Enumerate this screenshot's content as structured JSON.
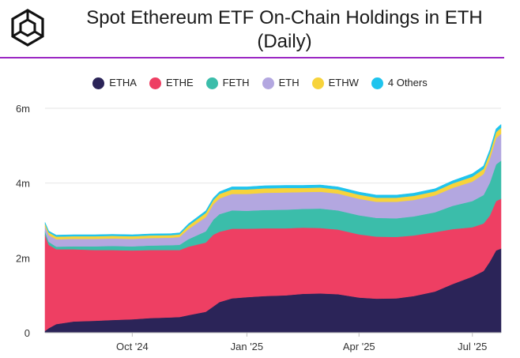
{
  "header": {
    "title_line1": "Spot Ethereum ETF On-Chain Holdings in ETH",
    "title_line2": "(Daily)",
    "logo_icon": "cube-logo-icon",
    "accent_color": "#9b27c4"
  },
  "chart_data": {
    "type": "area",
    "stacked": true,
    "title": "Spot Ethereum ETF On-Chain Holdings in ETH (Daily)",
    "xlabel": "",
    "ylabel": "",
    "x_ticks": [
      "Oct '24",
      "Jan '25",
      "Apr '25",
      "Jul '25"
    ],
    "y_ticks": [
      "0",
      "2m",
      "4m",
      "6m"
    ],
    "ylim": [
      0,
      6000000
    ],
    "grid": "horizontal",
    "legend_position": "top-center",
    "x": [
      "2024-07-23",
      "2024-07-26",
      "2024-08-01",
      "2024-08-15",
      "2024-09-01",
      "2024-09-15",
      "2024-10-01",
      "2024-10-15",
      "2024-11-01",
      "2024-11-08",
      "2024-11-15",
      "2024-11-29",
      "2024-12-05",
      "2024-12-10",
      "2024-12-20",
      "2025-01-01",
      "2025-01-15",
      "2025-02-01",
      "2025-02-15",
      "2025-03-01",
      "2025-03-15",
      "2025-04-01",
      "2025-04-15",
      "2025-05-01",
      "2025-05-15",
      "2025-06-01",
      "2025-06-15",
      "2025-07-01",
      "2025-07-10",
      "2025-07-15",
      "2025-07-20",
      "2025-07-24"
    ],
    "series": [
      {
        "name": "ETHA",
        "color": "#2b2458",
        "values": [
          50000,
          120000,
          230000,
          300000,
          320000,
          340000,
          360000,
          390000,
          410000,
          420000,
          470000,
          560000,
          700000,
          820000,
          920000,
          950000,
          980000,
          1000000,
          1040000,
          1050000,
          1030000,
          940000,
          910000,
          920000,
          980000,
          1100000,
          1300000,
          1500000,
          1650000,
          1900000,
          2200000,
          2250000
        ]
      },
      {
        "name": "ETHE",
        "color": "#ee3f63",
        "values": [
          2570000,
          2230000,
          2000000,
          1930000,
          1890000,
          1870000,
          1840000,
          1820000,
          1800000,
          1790000,
          1830000,
          1850000,
          1920000,
          1880000,
          1860000,
          1830000,
          1810000,
          1790000,
          1770000,
          1750000,
          1730000,
          1690000,
          1660000,
          1640000,
          1620000,
          1590000,
          1470000,
          1320000,
          1270000,
          1230000,
          1320000,
          1330000
        ]
      },
      {
        "name": "FETH",
        "color": "#3bbdaa",
        "values": [
          90000,
          80000,
          70000,
          80000,
          100000,
          110000,
          110000,
          120000,
          130000,
          140000,
          200000,
          300000,
          400000,
          470000,
          490000,
          480000,
          490000,
          500000,
          500000,
          520000,
          510000,
          510000,
          500000,
          500000,
          510000,
          530000,
          620000,
          700000,
          760000,
          880000,
          980000,
          1020000
        ]
      },
      {
        "name": "ETH",
        "color": "#b3a7e0",
        "values": [
          130000,
          180000,
          200000,
          200000,
          200000,
          200000,
          200000,
          200000,
          200000,
          210000,
          270000,
          380000,
          410000,
          420000,
          440000,
          450000,
          460000,
          460000,
          450000,
          450000,
          450000,
          440000,
          430000,
          440000,
          440000,
          450000,
          480000,
          520000,
          560000,
          640000,
          700000,
          720000
        ]
      },
      {
        "name": "ETHW",
        "color": "#f7d33b",
        "values": [
          70000,
          70000,
          70000,
          70000,
          70000,
          70000,
          70000,
          70000,
          70000,
          70000,
          90000,
          110000,
          110000,
          120000,
          120000,
          120000,
          120000,
          120000,
          110000,
          110000,
          110000,
          110000,
          110000,
          110000,
          110000,
          110000,
          120000,
          130000,
          140000,
          150000,
          160000,
          160000
        ]
      },
      {
        "name": "4 Others",
        "color": "#1fc4ee",
        "values": [
          40000,
          40000,
          40000,
          40000,
          40000,
          40000,
          40000,
          40000,
          40000,
          40000,
          50000,
          60000,
          60000,
          60000,
          70000,
          70000,
          70000,
          70000,
          70000,
          70000,
          70000,
          70000,
          70000,
          70000,
          70000,
          70000,
          70000,
          80000,
          80000,
          90000,
          90000,
          90000
        ]
      }
    ]
  }
}
